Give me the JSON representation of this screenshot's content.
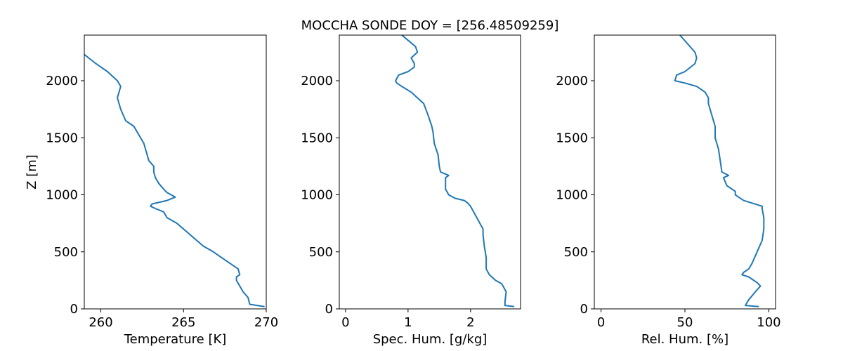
{
  "figure": {
    "title": "MOCCHA SONDE DOY = [256.48509259]"
  },
  "style": {
    "line_color": "#1f77b4",
    "axes_color": "#000000",
    "background": "#ffffff"
  },
  "chart_data": [
    {
      "type": "line",
      "xlabel": "Temperature [K]",
      "ylabel": "Z [m]",
      "xlim": [
        259,
        270
      ],
      "ylim": [
        0,
        2400
      ],
      "xticks": [
        260,
        265,
        270
      ],
      "yticks": [
        0,
        500,
        1000,
        1500,
        2000
      ],
      "grid": false,
      "series": [
        {
          "x": [
            269.9,
            269.0,
            268.9,
            268.6,
            268.4,
            268.2,
            268.2,
            268.4,
            268.3,
            267.6,
            267.3,
            266.8,
            266.2,
            265.8,
            265.0,
            264.6,
            264.0,
            263.8,
            263.3,
            263.0,
            263.1,
            264.0,
            264.5,
            264.0,
            263.8,
            263.5,
            263.3,
            263.2,
            263.2,
            262.9,
            262.8,
            262.6,
            262.2,
            262.0,
            261.5,
            261.2,
            261.0,
            261.1,
            261.2,
            261.0,
            260.4,
            259.7,
            259.0
          ],
          "y": [
            20,
            40,
            100,
            150,
            200,
            250,
            280,
            300,
            350,
            420,
            450,
            500,
            550,
            600,
            700,
            750,
            800,
            850,
            880,
            900,
            920,
            950,
            980,
            1020,
            1050,
            1100,
            1150,
            1200,
            1250,
            1300,
            1350,
            1450,
            1550,
            1600,
            1650,
            1750,
            1850,
            1900,
            1950,
            2000,
            2080,
            2150,
            2230
          ]
        }
      ]
    },
    {
      "type": "line",
      "xlabel": "Spec. Hum. [g/kg]",
      "ylabel": "",
      "xlim": [
        -0.1,
        2.8
      ],
      "ylim": [
        0,
        2400
      ],
      "xticks": [
        0,
        1,
        2
      ],
      "yticks": [
        0,
        500,
        1000,
        1500,
        2000
      ],
      "grid": false,
      "series": [
        {
          "x": [
            2.7,
            2.55,
            2.55,
            2.57,
            2.5,
            2.4,
            2.3,
            2.25,
            2.25,
            2.22,
            2.2,
            2.2,
            2.1,
            2.0,
            1.95,
            1.9,
            1.75,
            1.65,
            1.6,
            1.6,
            1.65,
            1.52,
            1.5,
            1.48,
            1.45,
            1.42,
            1.4,
            1.38,
            1.32,
            1.25,
            1.15,
            1.05,
            0.9,
            0.82,
            0.8,
            0.85,
            1.0,
            1.1,
            1.1,
            1.05,
            1.15,
            1.12,
            0.9
          ],
          "y": [
            20,
            30,
            60,
            150,
            220,
            250,
            300,
            350,
            450,
            550,
            650,
            700,
            800,
            900,
            930,
            950,
            970,
            1000,
            1050,
            1150,
            1170,
            1200,
            1250,
            1350,
            1400,
            1450,
            1550,
            1600,
            1700,
            1800,
            1850,
            1900,
            1950,
            1980,
            2000,
            2050,
            2080,
            2120,
            2150,
            2200,
            2250,
            2300,
            2400
          ]
        }
      ]
    },
    {
      "type": "line",
      "xlabel": "Rel. Hum. [%]",
      "ylabel": "",
      "xlim": [
        -4,
        104
      ],
      "ylim": [
        0,
        2400
      ],
      "xticks": [
        0,
        50,
        100
      ],
      "yticks": [
        0,
        500,
        1000,
        1500,
        2000
      ],
      "grid": false,
      "series": [
        {
          "x": [
            94,
            86,
            88,
            92,
            95,
            93,
            88,
            84,
            85,
            88,
            90,
            93,
            96,
            97,
            97,
            96,
            96,
            85,
            82,
            80,
            80,
            75,
            73,
            76,
            72,
            71,
            70,
            68,
            68,
            66,
            65,
            64,
            64,
            62,
            57,
            50,
            44,
            45,
            50,
            56,
            57,
            56,
            47
          ],
          "y": [
            20,
            30,
            80,
            150,
            200,
            230,
            280,
            300,
            320,
            350,
            400,
            500,
            600,
            700,
            800,
            880,
            900,
            950,
            980,
            1000,
            1030,
            1080,
            1150,
            1170,
            1200,
            1300,
            1400,
            1500,
            1600,
            1700,
            1750,
            1800,
            1850,
            1900,
            1950,
            1980,
            2000,
            2050,
            2080,
            2150,
            2200,
            2250,
            2400
          ]
        }
      ]
    }
  ]
}
